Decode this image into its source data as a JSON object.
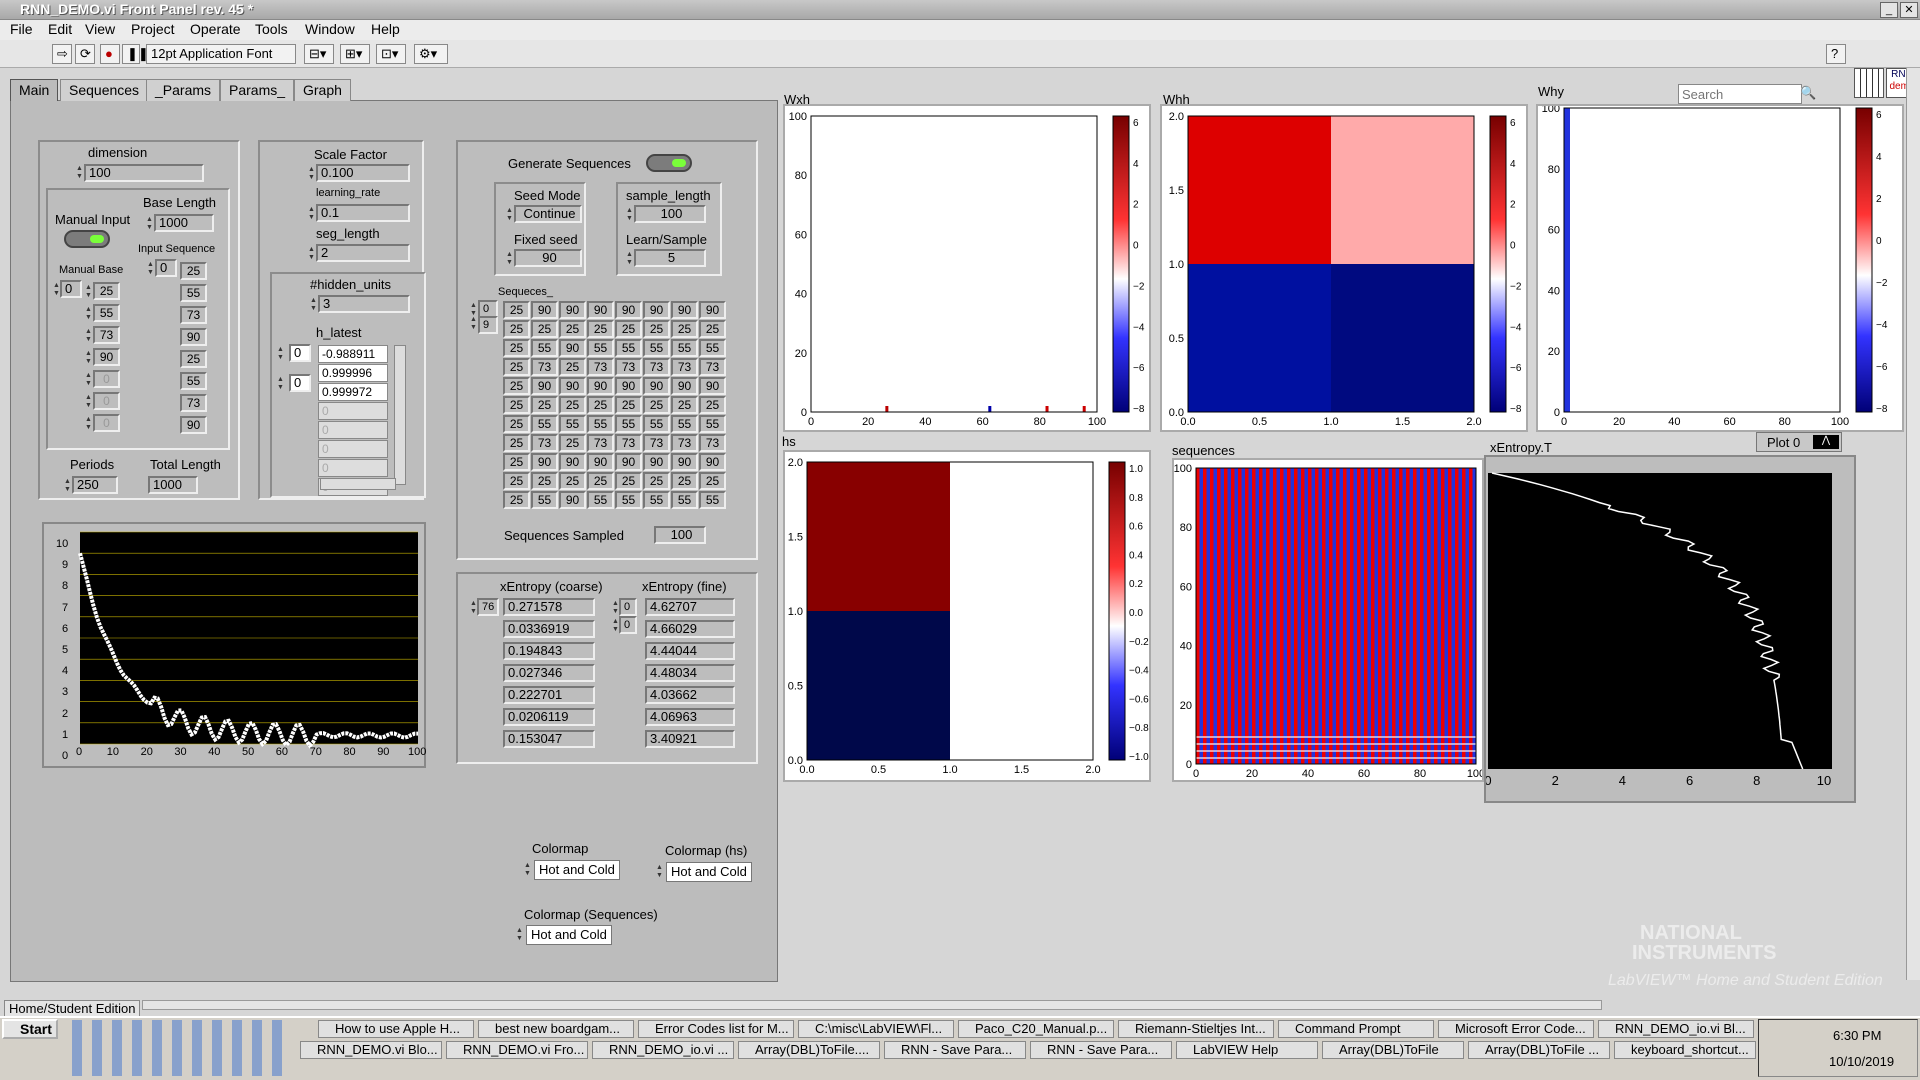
{
  "window": {
    "title": "RNN_DEMO.vi Front Panel rev. 45 *"
  },
  "menu": [
    "File",
    "Edit",
    "View",
    "Project",
    "Operate",
    "Tools",
    "Window",
    "Help"
  ],
  "toolbar": {
    "font": "12pt Application Font",
    "search_placeholder": "Search",
    "badge_top": "RNN",
    "badge_bottom": "demo"
  },
  "tabs": [
    "Main",
    "Sequences",
    "_Params",
    "Params_",
    "Graph"
  ],
  "controls": {
    "dimension_label": "dimension",
    "dimension": "100",
    "manual_input_label": "Manual Input",
    "base_length_label": "Base Length",
    "base_length": "1000",
    "manual_base_label": "Manual Base",
    "manual_base_index": "0",
    "manual_base": [
      "25",
      "55",
      "73",
      "90",
      "0",
      "0",
      "0"
    ],
    "input_sequence_label": "Input Sequence",
    "input_sequence_index": "0",
    "input_sequence": [
      "25",
      "55",
      "73",
      "90",
      "25",
      "55",
      "73",
      "90"
    ],
    "periods_label": "Periods",
    "periods": "250",
    "total_length_label": "Total Length",
    "total_length": "1000",
    "scale_factor_label": "Scale Factor",
    "scale_factor": "0.100",
    "learning_rate_label": "learning_rate",
    "learning_rate": "0.1",
    "seg_length_label": "seg_length",
    "seg_length": "2",
    "hidden_units_label": "#hidden_units",
    "hidden_units": "3",
    "h_latest_label": "h_latest",
    "h_idx1": "0",
    "h_idx2": "0",
    "h_latest": [
      "-0.988911",
      "0.999996",
      "0.999972",
      "0",
      "0",
      "0",
      "0",
      "0"
    ],
    "generate_label": "Generate Sequences",
    "seed_mode_label": "Seed Mode",
    "seed_mode": "Continue",
    "fixed_seed_label": "Fixed seed",
    "fixed_seed": "90",
    "sample_length_label": "sample_length",
    "sample_length": "100",
    "learn_sample_label": "Learn/Sample",
    "learn_sample": "5",
    "sequences_label": "Sequeces_",
    "seq_idx1": "0",
    "seq_idx2": "9",
    "sequences_grid": [
      [
        "25",
        "90",
        "90",
        "90",
        "90",
        "90",
        "90",
        "90"
      ],
      [
        "25",
        "25",
        "25",
        "25",
        "25",
        "25",
        "25",
        "25"
      ],
      [
        "25",
        "55",
        "90",
        "55",
        "55",
        "55",
        "55",
        "55"
      ],
      [
        "25",
        "73",
        "25",
        "73",
        "73",
        "73",
        "73",
        "73"
      ],
      [
        "25",
        "90",
        "90",
        "90",
        "90",
        "90",
        "90",
        "90"
      ],
      [
        "25",
        "25",
        "25",
        "25",
        "25",
        "25",
        "25",
        "25"
      ],
      [
        "25",
        "55",
        "55",
        "55",
        "55",
        "55",
        "55",
        "55"
      ],
      [
        "25",
        "73",
        "25",
        "73",
        "73",
        "73",
        "73",
        "73"
      ],
      [
        "25",
        "90",
        "90",
        "90",
        "90",
        "90",
        "90",
        "90"
      ],
      [
        "25",
        "25",
        "25",
        "25",
        "25",
        "25",
        "25",
        "25"
      ],
      [
        "25",
        "55",
        "90",
        "55",
        "55",
        "55",
        "55",
        "55"
      ]
    ],
    "sequences_sampled_label": "Sequences Sampled",
    "sequences_sampled": "100",
    "xentropy_coarse_label": "xEntropy (coarse)",
    "xentropy_coarse_idx": "76",
    "xentropy_coarse": [
      "0.271578",
      "0.0336919",
      "0.194843",
      "0.027346",
      "0.222701",
      "0.0206119",
      "0.153047"
    ],
    "xentropy_fine_label": "xEntropy (fine)",
    "xf_idx1": "0",
    "xf_idx2": "0",
    "xentropy_fine": [
      "4.62707",
      "4.66029",
      "4.44044",
      "4.48034",
      "4.03662",
      "4.06963",
      "3.40921"
    ],
    "colormap_label": "Colormap",
    "colormap": "Hot and Cold",
    "colormap_hs_label": "Colormap (hs)",
    "colormap_hs": "Hot and Cold",
    "colormap_seq_label": "Colormap (Sequences)",
    "colormap_seq": "Hot and Cold"
  },
  "plots": {
    "wxh": {
      "title": "Wxh",
      "yticks": [
        "100",
        "80",
        "60",
        "40",
        "20",
        "0"
      ],
      "xticks": [
        "0",
        "20",
        "40",
        "60",
        "80",
        "100"
      ],
      "cbar": [
        "6",
        "4",
        "2",
        "0",
        "−2",
        "−4",
        "−6",
        "−8"
      ]
    },
    "whh": {
      "title": "Whh",
      "yticks": [
        "2.0",
        "1.5",
        "1.0",
        "0.5",
        "0.0"
      ],
      "xticks": [
        "0.0",
        "0.5",
        "1.0",
        "1.5",
        "2.0"
      ],
      "cbar": [
        "6",
        "4",
        "2",
        "0",
        "−2",
        "−4",
        "−6",
        "−8"
      ]
    },
    "why": {
      "title": "Why",
      "yticks": [
        "100",
        "80",
        "60",
        "40",
        "20",
        "0"
      ],
      "xticks": [
        "0",
        "20",
        "40",
        "60",
        "80",
        "100"
      ],
      "cbar": [
        "6",
        "4",
        "2",
        "0",
        "−2",
        "−4",
        "−6",
        "−8"
      ]
    },
    "hs": {
      "title": "hs",
      "yticks": [
        "2.0",
        "1.5",
        "1.0",
        "0.5",
        "0.0"
      ],
      "xticks": [
        "0.0",
        "0.5",
        "1.0",
        "1.5",
        "2.0"
      ],
      "cbar": [
        "1.0",
        "0.8",
        "0.6",
        "0.4",
        "0.2",
        "0.0",
        "−0.2",
        "−0.4",
        "−0.6",
        "−0.8",
        "−1.0"
      ]
    },
    "sequences": {
      "title": "sequences",
      "yticks": [
        "100",
        "80",
        "60",
        "40",
        "20",
        "0"
      ],
      "xticks": [
        "0",
        "20",
        "40",
        "60",
        "80",
        "100"
      ]
    },
    "xentropy_t": {
      "title": "xEntropy.T",
      "legend": "Plot 0",
      "xticks": [
        "0",
        "2",
        "4",
        "6",
        "8",
        "10"
      ]
    },
    "loss": {
      "yticks": [
        "10",
        "9",
        "8",
        "7",
        "6",
        "5",
        "4",
        "3",
        "2",
        "1",
        "0"
      ],
      "xticks": [
        "0",
        "10",
        "20",
        "30",
        "40",
        "50",
        "60",
        "70",
        "80",
        "90",
        "100"
      ]
    }
  },
  "status": {
    "edition": "Home/Student Edition",
    "watermark_1": "NATIONAL",
    "watermark_2": "INSTRUMENTS",
    "watermark_3": "LabVIEW™ Home and Student Edition"
  },
  "taskbar": {
    "start": "Start",
    "row1": [
      "How to use Apple H...",
      "best new boardgam...",
      "Error Codes list for M...",
      "C:\\misc\\LabVIEW\\Fl...",
      "Paco_C20_Manual.p...",
      "Riemann-Stieltjes Int...",
      "Command Prompt",
      "Microsoft Error Code...",
      "RNN_DEMO_io.vi Bl..."
    ],
    "row2": [
      "RNN_DEMO.vi Blo...",
      "RNN_DEMO.vi Fro...",
      "RNN_DEMO_io.vi ...",
      "Array(DBL)ToFile....",
      "RNN - Save Para...",
      "RNN - Save Para...",
      "LabVIEW Help",
      "Array(DBL)ToFile",
      "Array(DBL)ToFile ...",
      "keyboard_shortcut..."
    ],
    "time": "6:30 PM",
    "date": "10/10/2019"
  }
}
